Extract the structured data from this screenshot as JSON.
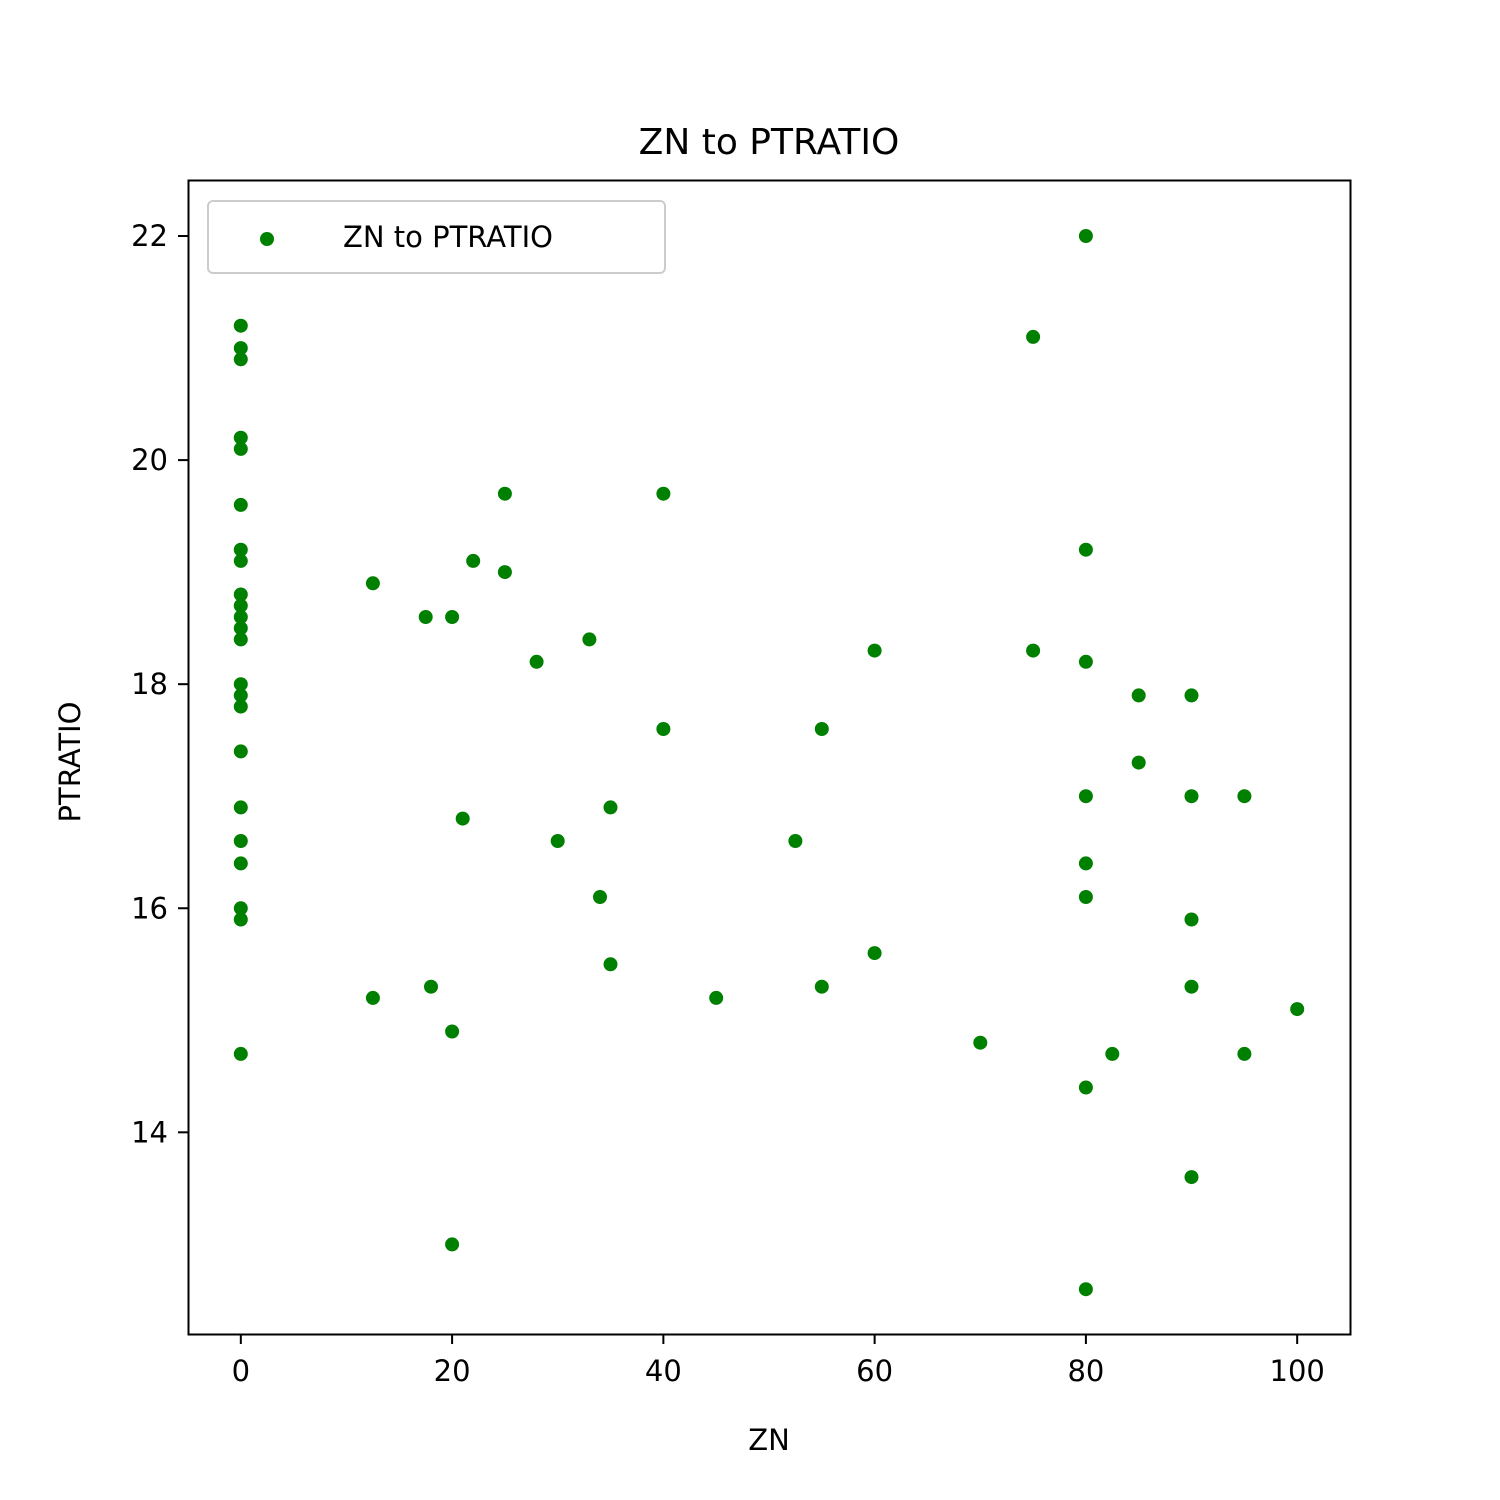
{
  "chart_data": {
    "type": "scatter",
    "title": "ZN to PTRATIO",
    "xlabel": "ZN",
    "ylabel": "PTRATIO",
    "xlim": [
      -5,
      105
    ],
    "ylim": [
      12.2,
      22.5
    ],
    "x_ticks": [
      0,
      20,
      40,
      60,
      80,
      100
    ],
    "x_tick_labels": [
      "0",
      "20",
      "40",
      "60",
      "80",
      "100"
    ],
    "y_ticks": [
      14,
      16,
      18,
      20,
      22
    ],
    "y_tick_labels": [
      "14",
      "16",
      "18",
      "20",
      "22"
    ],
    "grid": false,
    "legend_position": "upper-left",
    "series": [
      {
        "name": "ZN to PTRATIO",
        "color": "#008000",
        "points": [
          [
            0,
            21.2
          ],
          [
            0,
            21.0
          ],
          [
            0,
            20.9
          ],
          [
            0,
            20.2
          ],
          [
            0,
            20.1
          ],
          [
            0,
            19.6
          ],
          [
            0,
            19.2
          ],
          [
            0,
            19.1
          ],
          [
            0,
            18.8
          ],
          [
            0,
            18.7
          ],
          [
            0,
            18.6
          ],
          [
            0,
            18.5
          ],
          [
            0,
            18.4
          ],
          [
            0,
            18.0
          ],
          [
            0,
            17.9
          ],
          [
            0,
            17.8
          ],
          [
            0,
            17.4
          ],
          [
            0,
            16.9
          ],
          [
            0,
            16.6
          ],
          [
            0,
            16.4
          ],
          [
            0,
            16.0
          ],
          [
            0,
            15.9
          ],
          [
            0,
            14.7
          ],
          [
            12.5,
            18.9
          ],
          [
            12.5,
            15.2
          ],
          [
            17.5,
            18.6
          ],
          [
            18,
            15.3
          ],
          [
            20,
            18.6
          ],
          [
            20,
            14.9
          ],
          [
            20,
            13.0
          ],
          [
            21,
            16.8
          ],
          [
            22,
            19.1
          ],
          [
            25,
            19.7
          ],
          [
            25,
            19.0
          ],
          [
            28,
            18.2
          ],
          [
            30,
            16.6
          ],
          [
            33,
            18.4
          ],
          [
            34,
            16.1
          ],
          [
            35,
            16.9
          ],
          [
            35,
            15.5
          ],
          [
            40,
            19.7
          ],
          [
            40,
            17.6
          ],
          [
            45,
            15.2
          ],
          [
            52.5,
            16.6
          ],
          [
            55,
            17.6
          ],
          [
            55,
            15.3
          ],
          [
            60,
            18.3
          ],
          [
            60,
            15.6
          ],
          [
            70,
            14.8
          ],
          [
            75,
            21.1
          ],
          [
            75,
            18.3
          ],
          [
            80,
            22.0
          ],
          [
            80,
            19.2
          ],
          [
            80,
            18.2
          ],
          [
            80,
            17.0
          ],
          [
            80,
            16.4
          ],
          [
            80,
            16.1
          ],
          [
            80,
            14.4
          ],
          [
            80,
            12.6
          ],
          [
            82.5,
            14.7
          ],
          [
            85,
            17.9
          ],
          [
            85,
            17.3
          ],
          [
            90,
            17.9
          ],
          [
            90,
            17.0
          ],
          [
            90,
            15.9
          ],
          [
            90,
            15.3
          ],
          [
            90,
            13.6
          ],
          [
            95,
            17.0
          ],
          [
            95,
            14.7
          ],
          [
            100,
            15.1
          ]
        ]
      }
    ]
  }
}
